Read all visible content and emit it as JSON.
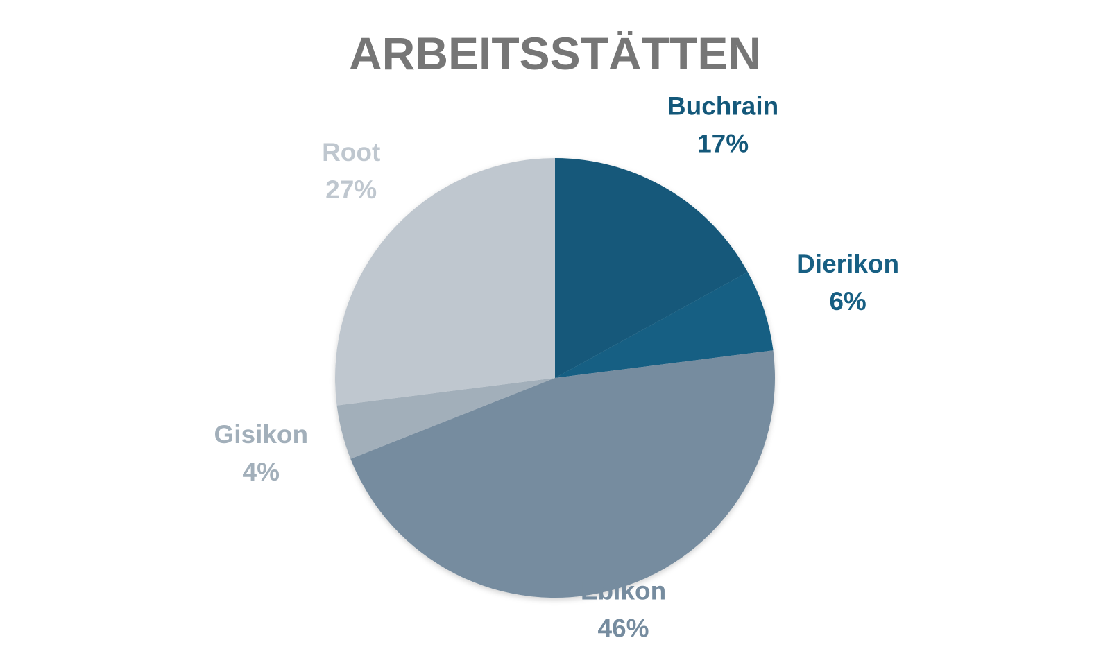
{
  "chart_data": {
    "type": "pie",
    "title": "ARBEITSSTÄTTEN",
    "title_color": "#767676",
    "start_angle_deg": 0,
    "direction": "clockwise",
    "legend": "none",
    "data_labels": "category-and-percent",
    "slices": [
      {
        "name": "Buchrain",
        "value": 17,
        "label_pct": "17%",
        "color": "#14587A",
        "label_color": "#14587A"
      },
      {
        "name": "Dierikon",
        "value": 6,
        "label_pct": "6%",
        "color": "#175F83",
        "label_color": "#175F83"
      },
      {
        "name": "Ebikon",
        "value": 46,
        "label_pct": "46%",
        "color": "#768C9F",
        "label_color": "#768C9F"
      },
      {
        "name": "Gisikon",
        "value": 4,
        "label_pct": "4%",
        "color": "#A2AFBA",
        "label_color": "#A2AFBA"
      },
      {
        "name": "Root",
        "value": 27,
        "label_pct": "27%",
        "color": "#BFC7CF",
        "label_color": "#BFC7CF"
      }
    ]
  }
}
